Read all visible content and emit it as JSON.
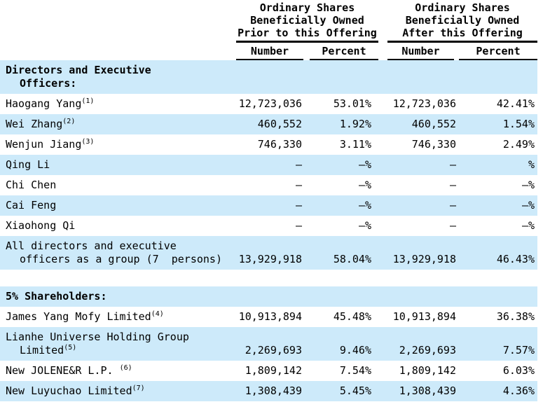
{
  "colors": {
    "row_highlight": "#cdeafa",
    "rule": "#000000",
    "text": "#000000"
  },
  "header": {
    "prior": {
      "line1": "Ordinary Shares",
      "line2": "Beneficially Owned",
      "line3": "Prior to this Offering",
      "col_number": "Number",
      "col_percent": "Percent"
    },
    "after": {
      "line1": "Ordinary Shares",
      "line2": "Beneficially Owned",
      "line3": "After this Offering",
      "col_number": "Number",
      "col_percent": "Percent"
    }
  },
  "table": {
    "rows": [
      {
        "lines": [
          {
            "text": "Directors and Executive"
          },
          {
            "text": "Officers:"
          }
        ],
        "bold": true,
        "shaded": true,
        "num1": "",
        "pct1": "",
        "num2": "",
        "pct2": ""
      },
      {
        "lines": [
          {
            "text": "Haogang Yang",
            "sup": "(1)"
          }
        ],
        "num1": "12,723,036",
        "pct1": "53.01%",
        "num2": "12,723,036",
        "pct2": "42.41%"
      },
      {
        "lines": [
          {
            "text": "Wei Zhang",
            "sup": "(2)"
          }
        ],
        "shaded": true,
        "num1": "460,552",
        "pct1": "1.92%",
        "num2": "460,552",
        "pct2": "1.54%"
      },
      {
        "lines": [
          {
            "text": "Wenjun Jiang",
            "sup": "(3)"
          }
        ],
        "num1": "746,330",
        "pct1": "3.11%",
        "num2": "746,330",
        "pct2": "2.49%"
      },
      {
        "lines": [
          {
            "text": "Qing Li"
          }
        ],
        "shaded": true,
        "num1": "—",
        "pct1": "—%",
        "num2": "—",
        "pct2": "%"
      },
      {
        "lines": [
          {
            "text": "Chi Chen"
          }
        ],
        "num1": "—",
        "pct1": "—%",
        "num2": "—",
        "pct2": "—%"
      },
      {
        "lines": [
          {
            "text": "Cai Feng"
          }
        ],
        "shaded": true,
        "num1": "—",
        "pct1": "—%",
        "num2": "—",
        "pct2": "—%"
      },
      {
        "lines": [
          {
            "text": "Xiaohong Qi"
          }
        ],
        "num1": "—",
        "pct1": "—%",
        "num2": "—",
        "pct2": "—%"
      },
      {
        "lines": [
          {
            "text": "All directors and executive"
          },
          {
            "text": "officers as a group (7  persons)"
          }
        ],
        "shaded": true,
        "num1": "13,929,918",
        "pct1": "58.04%",
        "num2": "13,929,918",
        "pct2": "46.43%"
      },
      {
        "spacer": true
      },
      {
        "lines": [
          {
            "text": "5% Shareholders:"
          }
        ],
        "bold": true,
        "shaded": true,
        "num1": "",
        "pct1": "",
        "num2": "",
        "pct2": ""
      },
      {
        "lines": [
          {
            "text": "James Yang Mofy Limited",
            "sup": "(4)"
          }
        ],
        "num1": "10,913,894",
        "pct1": "45.48%",
        "num2": "10,913,894",
        "pct2": "36.38%"
      },
      {
        "lines": [
          {
            "text": "Lianhe Universe Holding Group"
          },
          {
            "text": "Limited",
            "sup": "(5)"
          }
        ],
        "shaded": true,
        "num1": "2,269,693",
        "pct1": "9.46%",
        "num2": "2,269,693",
        "pct2": "7.57%"
      },
      {
        "lines": [
          {
            "text": "New JOLENE&R L.P. ",
            "sup": "(6)"
          }
        ],
        "num1": "1,809,142",
        "pct1": "7.54%",
        "num2": "1,809,142",
        "pct2": "6.03%"
      },
      {
        "lines": [
          {
            "text": "New Luyuchao Limited",
            "sup": "(7)"
          }
        ],
        "shaded": true,
        "num1": "1,308,439",
        "pct1": "5.45%",
        "num2": "1,308,439",
        "pct2": "4.36%"
      }
    ]
  }
}
